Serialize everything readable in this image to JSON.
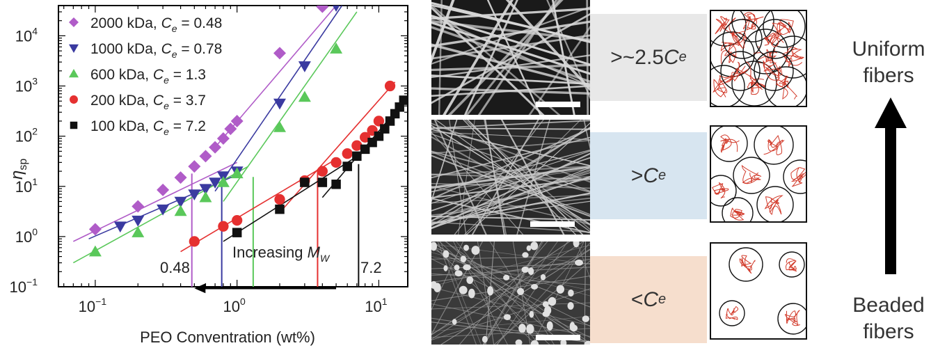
{
  "chart_data": {
    "type": "scatter",
    "xlabel": "PEO Conventration (wt%)",
    "ylabel_main": "η",
    "ylabel_sub": "sp",
    "x_scale": "log",
    "y_scale": "log",
    "xlim": [
      0.055,
      16
    ],
    "ylim": [
      0.1,
      40000
    ],
    "x_ticks": [
      {
        "value": 0.1,
        "base": "10",
        "exp": "−1"
      },
      {
        "value": 1,
        "base": "10",
        "exp": "0"
      },
      {
        "value": 10,
        "base": "10",
        "exp": "1"
      }
    ],
    "y_ticks": [
      {
        "value": 0.1,
        "base": "10",
        "exp": "−1"
      },
      {
        "value": 1,
        "base": "10",
        "exp": "0"
      },
      {
        "value": 10,
        "base": "10",
        "exp": "1"
      },
      {
        "value": 100,
        "base": "10",
        "exp": "2"
      },
      {
        "value": 1000,
        "base": "10",
        "exp": "3"
      },
      {
        "value": 10000,
        "base": "10",
        "exp": "4"
      }
    ],
    "legend_position": "top-left",
    "series": [
      {
        "name": "2000 kDa",
        "ce_label": "C",
        "ce_sub": "e",
        "ce_value": "= 0.48",
        "ce": 0.48,
        "marker": "diamond",
        "color": "#b05cc8",
        "points": [
          [
            0.1,
            1.4
          ],
          [
            0.2,
            4
          ],
          [
            0.3,
            8.5
          ],
          [
            0.4,
            15
          ],
          [
            0.5,
            25
          ],
          [
            0.6,
            40
          ],
          [
            0.7,
            60
          ],
          [
            0.8,
            90
          ],
          [
            0.9,
            140
          ],
          [
            1.0,
            200
          ],
          [
            2.0,
            4500
          ],
          [
            4.0,
            38000
          ]
        ],
        "fit_dilute": [
          [
            0.07,
            0.8
          ],
          [
            1.0,
            30
          ]
        ],
        "fit_conc": [
          [
            0.7,
            60
          ],
          [
            5,
            40000
          ]
        ]
      },
      {
        "name": "1000 kDa",
        "ce_label": "C",
        "ce_sub": "e",
        "ce_value": "= 0.78",
        "ce": 0.78,
        "marker": "triangle-down",
        "color": "#3a3aa0",
        "points": [
          [
            0.15,
            1.6
          ],
          [
            0.2,
            2.1
          ],
          [
            0.3,
            3.5
          ],
          [
            0.4,
            5.0
          ],
          [
            0.5,
            7.0
          ],
          [
            0.6,
            9.0
          ],
          [
            0.7,
            12
          ],
          [
            0.8,
            16
          ],
          [
            1.0,
            20
          ],
          [
            2.0,
            450
          ],
          [
            3.0,
            2500
          ],
          [
            5.0,
            40000
          ]
        ],
        "fit_dilute": [
          [
            0.09,
            0.9
          ],
          [
            1.0,
            17
          ]
        ],
        "fit_conc": [
          [
            0.7,
            8
          ],
          [
            5.5,
            40000
          ]
        ]
      },
      {
        "name": "600 kDa",
        "ce_label": "C",
        "ce_sub": "e",
        "ce_value": "= 1.3",
        "ce": 1.3,
        "marker": "triangle-up",
        "color": "#5ac85a",
        "points": [
          [
            0.1,
            0.5
          ],
          [
            0.2,
            1.2
          ],
          [
            0.4,
            3.2
          ],
          [
            0.6,
            6
          ],
          [
            0.8,
            12
          ],
          [
            1.0,
            18
          ],
          [
            2.0,
            150
          ],
          [
            3.0,
            600
          ],
          [
            5.0,
            5500
          ]
        ],
        "fit_dilute": [
          [
            0.07,
            0.3
          ],
          [
            1.2,
            25
          ]
        ],
        "fit_conc": [
          [
            0.8,
            5
          ],
          [
            7,
            30000
          ]
        ]
      },
      {
        "name": "200 kDa",
        "ce_label": "C",
        "ce_sub": "e",
        "ce_value": "= 3.7",
        "ce": 3.7,
        "marker": "circle",
        "color": "#e53030",
        "points": [
          [
            0.5,
            0.8
          ],
          [
            0.8,
            1.6
          ],
          [
            1.0,
            2.1
          ],
          [
            2.0,
            5.5
          ],
          [
            3.0,
            13
          ],
          [
            4.0,
            20
          ],
          [
            5.0,
            30
          ],
          [
            6.0,
            45
          ],
          [
            7.0,
            65
          ],
          [
            8.0,
            95
          ],
          [
            9.0,
            130
          ],
          [
            10.0,
            200
          ],
          [
            12.0,
            1000
          ]
        ],
        "fit_dilute": [
          [
            0.4,
            0.5
          ],
          [
            5,
            35
          ]
        ],
        "fit_conc": [
          [
            2,
            3
          ],
          [
            13,
            1200
          ]
        ]
      },
      {
        "name": "100 kDa",
        "ce_label": "C",
        "ce_sub": "e",
        "ce_value": "= 7.2",
        "ce": 7.2,
        "marker": "square",
        "color": "#111111",
        "points": [
          [
            1.0,
            1.2
          ],
          [
            2.0,
            3.5
          ],
          [
            3.0,
            12
          ],
          [
            4.0,
            12
          ],
          [
            5.0,
            11
          ],
          [
            6.0,
            25
          ],
          [
            7.0,
            40
          ],
          [
            8.0,
            55
          ],
          [
            9.0,
            75
          ],
          [
            10.0,
            100
          ],
          [
            11.0,
            140
          ],
          [
            12.0,
            200
          ],
          [
            13.0,
            280
          ],
          [
            14.0,
            380
          ],
          [
            15.0,
            520
          ]
        ],
        "fit_dilute": [
          [
            0.8,
            0.8
          ],
          [
            8,
            50
          ]
        ],
        "fit_conc": [
          [
            4,
            6
          ],
          [
            16,
            600
          ]
        ]
      }
    ],
    "annotation": {
      "text": "Increasing",
      "sub_main": "M",
      "sub_sub": "W",
      "from": 5.0,
      "to": 0.5,
      "y": 0.2
    },
    "ce_left_label": "0.48",
    "ce_right_label": "7.2"
  },
  "rows": [
    {
      "label_prefix": ">~2.5 ",
      "label_main": "C",
      "label_sub": "e",
      "box_color": "#e8e8e8",
      "chains": "dense"
    },
    {
      "label_prefix": ">",
      "label_main": "C",
      "label_sub": "e",
      "box_color": "#d7e5f0",
      "chains": "touching"
    },
    {
      "label_prefix": "<",
      "label_main": "C",
      "label_sub": "e",
      "box_color": "#f6decd",
      "chains": "dilute"
    }
  ],
  "side": {
    "top_line1": "Uniform",
    "top_line2": "fibers",
    "bottom_line1": "Beaded",
    "bottom_line2": "fibers"
  }
}
